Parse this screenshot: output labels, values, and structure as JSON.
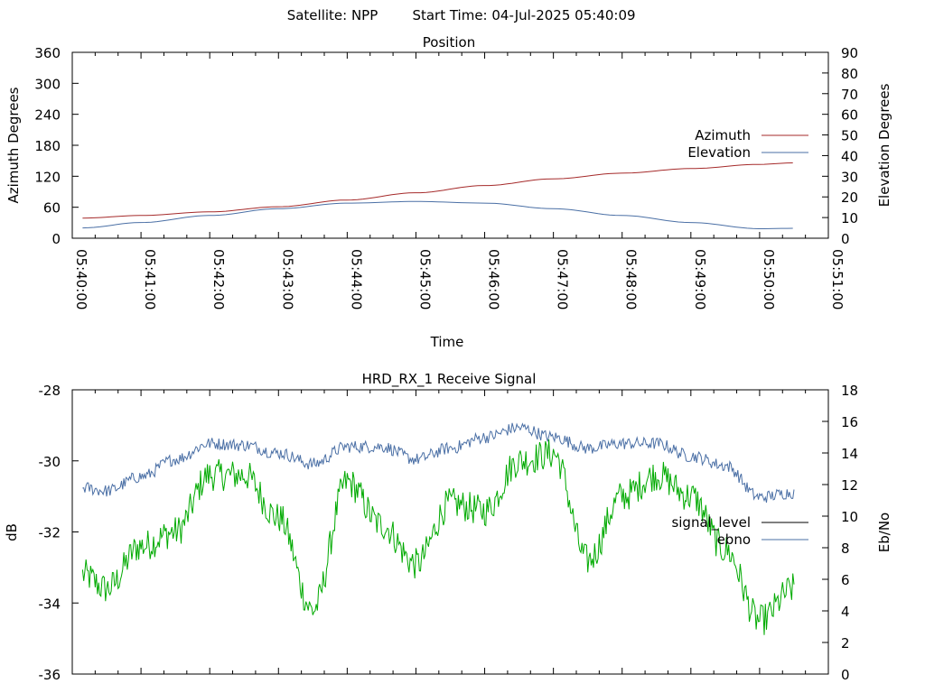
{
  "header": {
    "satellite": "Satellite: NPP",
    "start_time": "Start Time: 04-Jul-2025 05:40:09"
  },
  "chart_data": [
    {
      "type": "line",
      "title": "Position",
      "xlabel": "Time",
      "ylabel": "Azimuth Degrees",
      "y2label": "Elevation Degrees",
      "xlim": [
        "05:40:00",
        "05:51:00"
      ],
      "ylim": [
        0,
        360
      ],
      "y2lim": [
        0,
        90
      ],
      "x_ticks": [
        "05:40:00",
        "05:41:00",
        "05:42:00",
        "05:43:00",
        "05:44:00",
        "05:45:00",
        "05:46:00",
        "05:47:00",
        "05:48:00",
        "05:49:00",
        "05:50:00",
        "05:51:00"
      ],
      "y_ticks": [
        0,
        60,
        120,
        180,
        240,
        300,
        360
      ],
      "y2_ticks": [
        0,
        10,
        20,
        30,
        40,
        50,
        60,
        70,
        80,
        90
      ],
      "legend_position": "right",
      "series": [
        {
          "name": "Azimuth",
          "axis": "left",
          "color": "#a52a2a",
          "x": [
            "05:40:09",
            "05:41:00",
            "05:42:00",
            "05:43:00",
            "05:44:00",
            "05:45:00",
            "05:46:00",
            "05:47:00",
            "05:48:00",
            "05:49:00",
            "05:50:00",
            "05:50:30"
          ],
          "values": [
            39,
            44,
            51,
            61,
            74,
            88,
            102,
            115,
            126,
            135,
            143,
            146
          ]
        },
        {
          "name": "Elevation",
          "axis": "right",
          "color": "#4a6fa5",
          "x": [
            "05:40:09",
            "05:41:00",
            "05:42:00",
            "05:43:00",
            "05:44:00",
            "05:45:00",
            "05:46:00",
            "05:47:00",
            "05:48:00",
            "05:49:00",
            "05:50:00",
            "05:50:30"
          ],
          "values": [
            5.0,
            7.6,
            11.0,
            14.3,
            17.0,
            17.8,
            17.0,
            14.3,
            11.0,
            7.6,
            4.6,
            4.8
          ]
        }
      ]
    },
    {
      "type": "line",
      "title": "HRD_RX_1 Receive Signal",
      "ylabel": "dB",
      "y2label": "Eb/No",
      "xlim": [
        "05:40:00",
        "05:51:00"
      ],
      "ylim": [
        -36,
        -28
      ],
      "y2lim": [
        0,
        18
      ],
      "y_ticks": [
        -36,
        -34,
        -32,
        -30,
        -28
      ],
      "y2_ticks": [
        0,
        2,
        4,
        6,
        8,
        10,
        12,
        14,
        16,
        18
      ],
      "legend_position": "right",
      "series": [
        {
          "name": "signal_level",
          "axis": "left",
          "color": "#00aa00",
          "x": [
            "05:40:09",
            "05:40:30",
            "05:41:00",
            "05:41:30",
            "05:42:00",
            "05:42:30",
            "05:43:00",
            "05:43:30",
            "05:44:00",
            "05:44:30",
            "05:45:00",
            "05:45:30",
            "05:46:00",
            "05:46:30",
            "05:47:00",
            "05:47:30",
            "05:48:00",
            "05:48:30",
            "05:49:00",
            "05:49:30",
            "05:50:00",
            "05:50:30"
          ],
          "values": [
            -33.2,
            -33.6,
            -32.4,
            -32.0,
            -30.4,
            -30.4,
            -31.6,
            -34.2,
            -30.6,
            -31.8,
            -32.9,
            -31.2,
            -31.4,
            -30.0,
            -29.8,
            -32.8,
            -31.0,
            -30.4,
            -31.0,
            -32.5,
            -34.5,
            -33.6
          ]
        },
        {
          "name": "ebno",
          "axis": "right",
          "color": "#4a6fa5",
          "x": [
            "05:40:09",
            "05:40:30",
            "05:41:00",
            "05:41:30",
            "05:42:00",
            "05:42:30",
            "05:43:00",
            "05:43:30",
            "05:44:00",
            "05:44:30",
            "05:45:00",
            "05:45:30",
            "05:46:00",
            "05:46:30",
            "05:47:00",
            "05:47:30",
            "05:48:00",
            "05:48:30",
            "05:49:00",
            "05:49:30",
            "05:50:00",
            "05:50:30"
          ],
          "values": [
            11.8,
            11.6,
            12.5,
            13.6,
            14.6,
            14.5,
            14.0,
            13.3,
            14.4,
            14.4,
            13.6,
            14.3,
            15.0,
            15.6,
            15.0,
            14.3,
            14.6,
            14.6,
            13.8,
            13.2,
            11.2,
            11.5
          ]
        }
      ]
    }
  ]
}
